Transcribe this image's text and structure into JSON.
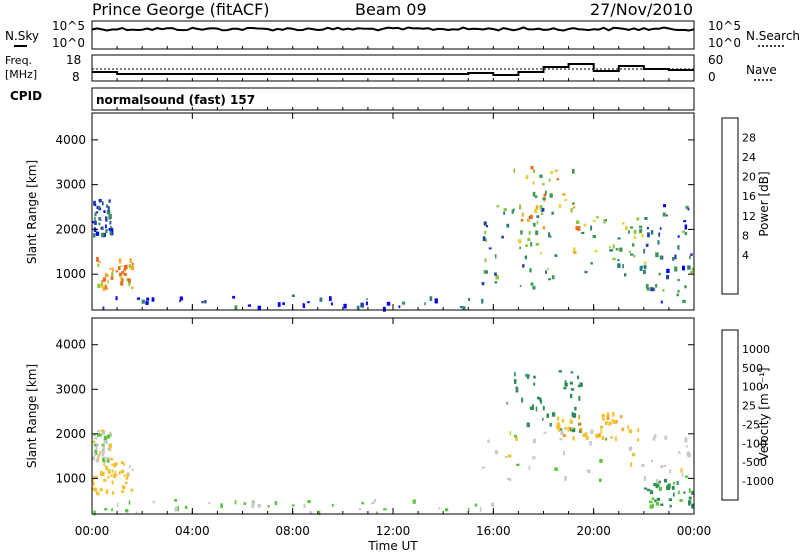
{
  "header": {
    "station": "Prince George (fitACF)",
    "beam": "Beam 09",
    "date": "27/Nov/2010"
  },
  "status_panels": {
    "nsky_label": "N.Sky",
    "nsky_ticks": [
      "10^5",
      "10^0"
    ],
    "nsearch_label": "N.Search",
    "nsearch_ticks": [
      "10^5",
      "10^0"
    ],
    "freq_label_1": "Freq.",
    "freq_label_2": "[MHz]",
    "freq_ticks": [
      "18",
      "8"
    ],
    "nave_label": "Nave",
    "nave_ticks": [
      "60",
      "0"
    ],
    "cpid_label": "CPID",
    "cpid_text": "normalsound (fast) 157"
  },
  "chart_data": [
    {
      "type": "heatmap",
      "name": "power",
      "ylabel": "Slant Range [km]",
      "y_ticks": [
        "1000",
        "2000",
        "3000",
        "4000"
      ],
      "ylim": [
        200,
        4600
      ],
      "colorbar_label": "Power [dB]",
      "colorbar_ticks": [
        "28",
        "24",
        "20",
        "16",
        "12",
        "8",
        "4"
      ],
      "colorbar_colors": [
        "#0000ff",
        "#1e3ea6",
        "#2f7d7a",
        "#3e9a52",
        "#8cc63f",
        "#e8d23a",
        "#f5a623",
        "#f26a1b",
        "#e81e1e"
      ],
      "echo_regions": [
        {
          "t_start": 0.0,
          "t_end": 1.6,
          "r_min": 700,
          "r_max": 1400,
          "level": 26
        },
        {
          "t_start": 0.0,
          "t_end": 0.8,
          "r_min": 1900,
          "r_max": 2700,
          "level": 6
        },
        {
          "t_start": 0.0,
          "t_end": 16.0,
          "r_min": 200,
          "r_max": 550,
          "level": 5
        },
        {
          "t_start": 15.5,
          "t_end": 18.5,
          "r_min": 700,
          "r_max": 2600,
          "level": 12
        },
        {
          "t_start": 16.8,
          "t_end": 19.5,
          "r_min": 1500,
          "r_max": 3500,
          "level": 22
        },
        {
          "t_start": 19.5,
          "t_end": 22.5,
          "r_min": 1000,
          "r_max": 2300,
          "level": 16
        },
        {
          "t_start": 22.0,
          "t_end": 24.0,
          "r_min": 400,
          "r_max": 2600,
          "level": 10
        }
      ]
    },
    {
      "type": "heatmap",
      "name": "velocity",
      "ylabel": "Slant Range [km]",
      "y_ticks": [
        "1000",
        "2000",
        "3000",
        "4000"
      ],
      "ylim": [
        200,
        4600
      ],
      "colorbar_label": "Velocity [m s⁻¹]",
      "colorbar_ticks": [
        "1000",
        "500",
        "100",
        "25",
        "-25",
        "-100",
        "-500",
        "-1000"
      ],
      "colorbar_colors": [
        "#1e40b8",
        "#2f5fa8",
        "#2e8b57",
        "#5ac43c",
        "#c8c8c8",
        "#f2c12e",
        "#f59d1a",
        "#f26a1b",
        "#e81e1e"
      ],
      "echo_regions": [
        {
          "t_start": 0.0,
          "t_end": 1.6,
          "r_min": 700,
          "r_max": 1400,
          "level": 60
        },
        {
          "t_start": 0.0,
          "t_end": 0.8,
          "r_min": 1400,
          "r_max": 2100,
          "level": 0
        },
        {
          "t_start": 0.0,
          "t_end": 16.0,
          "r_min": 200,
          "r_max": 550,
          "level": -40
        },
        {
          "t_start": 15.5,
          "t_end": 24.0,
          "r_min": 900,
          "r_max": 2100,
          "level": 0
        },
        {
          "t_start": 16.5,
          "t_end": 19.5,
          "r_min": 2100,
          "r_max": 3500,
          "level": -300
        },
        {
          "t_start": 18.5,
          "t_end": 22.0,
          "r_min": 1900,
          "r_max": 2500,
          "level": 80
        },
        {
          "t_start": 22.0,
          "t_end": 24.0,
          "r_min": 400,
          "r_max": 1000,
          "level": -150
        }
      ]
    }
  ],
  "x_axis": {
    "label": "Time UT",
    "ticks": [
      "00:00",
      "04:00",
      "08:00",
      "12:00",
      "16:00",
      "20:00",
      "00:00"
    ]
  }
}
